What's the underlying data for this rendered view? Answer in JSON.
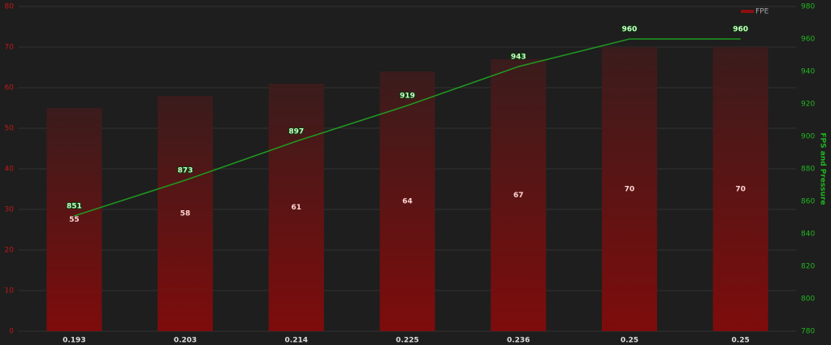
{
  "chart_data": {
    "type": "bar",
    "categories": [
      "0.193",
      "0.203",
      "0.214",
      "0.225",
      "0.236",
      "0.25",
      "0.25"
    ],
    "series": [
      {
        "name": "FPE",
        "color": "#8b0f0f",
        "values": [
          55,
          58,
          61,
          64,
          67,
          70,
          70
        ]
      },
      {
        "type": "line",
        "axis": "y2",
        "color": "#1f9a1f",
        "values": [
          851,
          873,
          897,
          919,
          943,
          960,
          960
        ]
      }
    ],
    "ylim": [
      0,
      80
    ],
    "yticks": [
      0,
      10,
      20,
      30,
      40,
      50,
      60,
      70,
      80
    ],
    "y2lim": [
      780,
      980
    ],
    "y2ticks": [
      780,
      800,
      820,
      840,
      860,
      880,
      900,
      920,
      940,
      960,
      980
    ],
    "y2label": "FPS and Pressure",
    "grid": true,
    "legend": "top-right"
  }
}
